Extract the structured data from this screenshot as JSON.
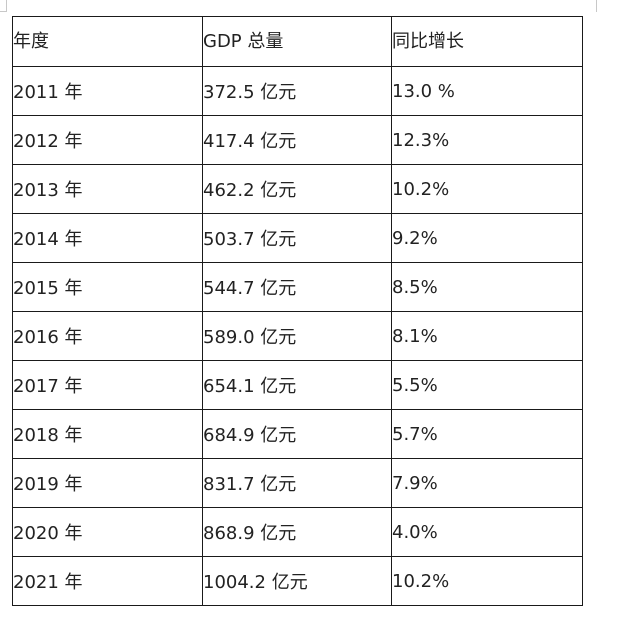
{
  "table": {
    "headers": {
      "year": "年度",
      "gdp": "GDP 总量",
      "growth": "同比增长"
    },
    "rows": [
      {
        "year": "2011 年",
        "gdp": "372.5 亿元",
        "growth": "13.0 %"
      },
      {
        "year": "2012 年",
        "gdp": "417.4 亿元",
        "growth": "12.3%"
      },
      {
        "year": "2013 年",
        "gdp": "462.2 亿元",
        "growth": "10.2%"
      },
      {
        "year": "2014 年",
        "gdp": "503.7 亿元",
        "growth": "9.2%"
      },
      {
        "year": "2015 年",
        "gdp": "544.7 亿元",
        "growth": "8.5%"
      },
      {
        "year": "2016 年",
        "gdp": "589.0 亿元",
        "growth": "8.1%"
      },
      {
        "year": "2017 年",
        "gdp": "654.1 亿元",
        "growth": "5.5%"
      },
      {
        "year": "2018 年",
        "gdp": "684.9 亿元",
        "growth": "5.7%"
      },
      {
        "year": "2019 年",
        "gdp": "831.7 亿元",
        "growth": "7.9%"
      },
      {
        "year": "2020 年",
        "gdp": "868.9 亿元",
        "growth": "4.0%"
      },
      {
        "year": "2021 年",
        "gdp": "1004.2 亿元",
        "growth": "10.2%"
      }
    ]
  }
}
